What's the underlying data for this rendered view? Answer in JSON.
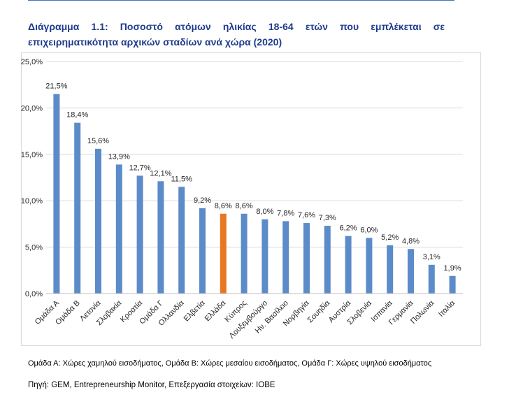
{
  "title": "Διάγραμμα 1.1: Ποσοστό ατόμων ηλικίας 18-64 ετών που εμπλέκεται σε επιχειρηματικότητα αρχικών σταδίων ανά χώρα (2020)",
  "notes": "Ομάδα Α: Χώρες χαμηλού εισοδήματος, Ομάδα Β: Χώρες μεσαίου εισοδήματος, Ομάδα Γ: Χώρες υψηλού εισοδήματος",
  "source": "Πηγή: GEM, Entrepreneurship Monitor, Επεξεργασία στοιχείων: ΙΟΒΕ",
  "colors": {
    "bar": "#5b8cc9",
    "highlight": "#e87722",
    "grid": "#d9d9d9",
    "text": "#262626"
  },
  "chart_data": {
    "type": "bar",
    "title": "Διάγραμμα 1.1: Ποσοστό ατόμων ηλικίας 18-64 ετών που εμπλέκεται σε επιχειρηματικότητα αρχικών σταδίων ανά χώρα (2020)",
    "xlabel": "",
    "ylabel": "",
    "ylim": [
      0,
      25
    ],
    "yticks": [
      "0,0%",
      "5,0%",
      "10,0%",
      "15,0%",
      "20,0%",
      "25,0%"
    ],
    "grid": true,
    "legend": "none",
    "highlight_category": "Ελλάδα",
    "categories": [
      "Ομάδα Α",
      "Ομάδα Β",
      "Λετονία",
      "Σλοβακία",
      "Κροατία",
      "Ομάδα Γ",
      "Ολλανδία",
      "Ελβετία",
      "Ελλάδα",
      "Κύπρος",
      "Λουξεμβούργο",
      "Ην. Βασίλειο",
      "Νορβηγία",
      "Σουηδία",
      "Αυστρία",
      "Σλοβενία",
      "Ισπανία",
      "Γερμανία",
      "Πολωνία",
      "Ιταλία"
    ],
    "values": [
      21.5,
      18.4,
      15.6,
      13.9,
      12.7,
      12.1,
      11.5,
      9.2,
      8.6,
      8.6,
      8.0,
      7.8,
      7.6,
      7.3,
      6.2,
      6.0,
      5.2,
      4.8,
      3.1,
      1.9
    ],
    "data_labels": [
      "21,5%",
      "18,4%",
      "15,6%",
      "13,9%",
      "12,7%",
      "12,1%",
      "11,5%",
      "9,2%",
      "8,6%",
      "8,6%",
      "8,0%",
      "7,8%",
      "7,6%",
      "7,3%",
      "6,2%",
      "6,0%",
      "5,2%",
      "4,8%",
      "3,1%",
      "1,9%"
    ]
  }
}
